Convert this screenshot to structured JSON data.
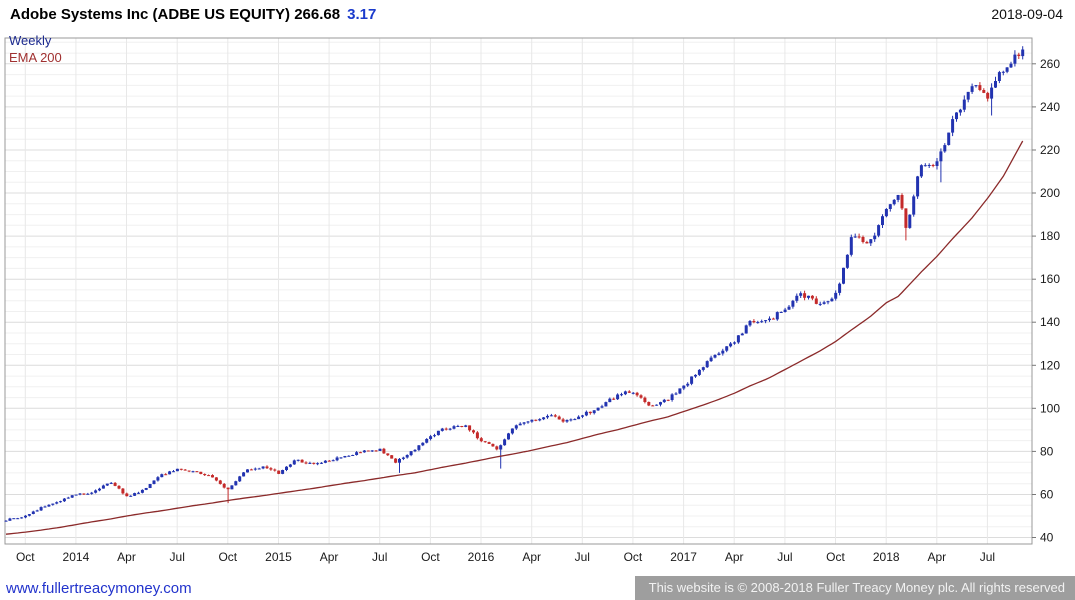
{
  "header": {
    "title": "Adobe Systems Inc (ADBE US EQUITY) 266.68",
    "change": "3.17",
    "date": "2018-09-04"
  },
  "legend": {
    "interval_label": "Weekly",
    "ema_label": "EMA 200"
  },
  "footer": {
    "site_link": "www.fullertreacymoney.com",
    "copyright": "This website is © 2008-2018 Fuller Treacy Money plc. All rights reserved"
  },
  "chart_data": {
    "type": "candlestick",
    "title": "Adobe Systems Inc (ADBE US EQUITY)",
    "interval": "Weekly",
    "overlay": "EMA 200",
    "last_close": 266.68,
    "change": 3.17,
    "as_of_date": "2018-09-04",
    "value_range": [
      37,
      272
    ],
    "time_range": [
      2013.65,
      2018.72
    ],
    "series_start": 2013.655,
    "series_end": 2018.685,
    "y_ticks": [
      40,
      60,
      80,
      100,
      120,
      140,
      160,
      180,
      200,
      220,
      240,
      260
    ],
    "x_labels": [
      {
        "label": "Oct",
        "t": 2013.75
      },
      {
        "label": "2014",
        "t": 2014.0
      },
      {
        "label": "Apr",
        "t": 2014.25
      },
      {
        "label": "Jul",
        "t": 2014.5
      },
      {
        "label": "Oct",
        "t": 2014.75
      },
      {
        "label": "2015",
        "t": 2015.0
      },
      {
        "label": "Apr",
        "t": 2015.25
      },
      {
        "label": "Jul",
        "t": 2015.5
      },
      {
        "label": "Oct",
        "t": 2015.75
      },
      {
        "label": "2016",
        "t": 2016.0
      },
      {
        "label": "Apr",
        "t": 2016.25
      },
      {
        "label": "Jul",
        "t": 2016.5
      },
      {
        "label": "Oct",
        "t": 2016.75
      },
      {
        "label": "2017",
        "t": 2017.0
      },
      {
        "label": "Apr",
        "t": 2017.25
      },
      {
        "label": "Jul",
        "t": 2017.5
      },
      {
        "label": "Oct",
        "t": 2017.75
      },
      {
        "label": "2018",
        "t": 2018.0
      },
      {
        "label": "Apr",
        "t": 2018.25
      },
      {
        "label": "Jul",
        "t": 2018.5
      }
    ],
    "anchors_format": [
      "time_decimal_year",
      "close_est",
      "ema200_est"
    ],
    "anchors": [
      [
        2013.65,
        48,
        41.5
      ],
      [
        2013.75,
        50,
        42.5
      ],
      [
        2013.83,
        54,
        43.5
      ],
      [
        2013.92,
        57,
        44.7
      ],
      [
        2014.0,
        60,
        46
      ],
      [
        2014.08,
        61,
        47.3
      ],
      [
        2014.17,
        66,
        48.6
      ],
      [
        2014.25,
        59,
        50
      ],
      [
        2014.33,
        62,
        51.2
      ],
      [
        2014.42,
        69,
        52.4
      ],
      [
        2014.5,
        72,
        53.6
      ],
      [
        2014.58,
        71,
        54.8
      ],
      [
        2014.67,
        68,
        56
      ],
      [
        2014.75,
        62,
        57.2
      ],
      [
        2014.83,
        71,
        58.3
      ],
      [
        2014.92,
        73,
        59.4
      ],
      [
        2015.0,
        70,
        60.5
      ],
      [
        2015.08,
        76,
        61.6
      ],
      [
        2015.17,
        74,
        62.8
      ],
      [
        2015.25,
        76,
        64
      ],
      [
        2015.33,
        78,
        65.2
      ],
      [
        2015.42,
        80,
        66.4
      ],
      [
        2015.5,
        81,
        67.6
      ],
      [
        2015.58,
        75,
        68.8
      ],
      [
        2015.67,
        81,
        70
      ],
      [
        2015.75,
        87,
        71.5
      ],
      [
        2015.83,
        91,
        73
      ],
      [
        2015.92,
        92,
        74.5
      ],
      [
        2016.0,
        85,
        76
      ],
      [
        2016.08,
        81,
        77.5
      ],
      [
        2016.17,
        92,
        79
      ],
      [
        2016.25,
        94,
        80.5
      ],
      [
        2016.33,
        97,
        82.2
      ],
      [
        2016.42,
        94,
        84
      ],
      [
        2016.5,
        97,
        86
      ],
      [
        2016.58,
        100,
        88
      ],
      [
        2016.67,
        106,
        90
      ],
      [
        2016.75,
        108,
        92
      ],
      [
        2016.83,
        101,
        94
      ],
      [
        2016.92,
        104,
        96
      ],
      [
        2017.0,
        110,
        98.5
      ],
      [
        2017.08,
        118,
        101
      ],
      [
        2017.17,
        126,
        104
      ],
      [
        2017.25,
        131,
        107
      ],
      [
        2017.33,
        140,
        110.5
      ],
      [
        2017.42,
        141,
        114
      ],
      [
        2017.5,
        146,
        118
      ],
      [
        2017.58,
        153,
        122
      ],
      [
        2017.67,
        149,
        126.5
      ],
      [
        2017.75,
        152,
        131
      ],
      [
        2017.83,
        180,
        136.5
      ],
      [
        2017.92,
        177,
        142.5
      ],
      [
        2018.0,
        192,
        149
      ],
      [
        2018.06,
        200,
        152
      ],
      [
        2018.1,
        184,
        156
      ],
      [
        2018.17,
        214,
        163
      ],
      [
        2018.25,
        214,
        170.5
      ],
      [
        2018.33,
        234,
        179
      ],
      [
        2018.42,
        250,
        188
      ],
      [
        2018.5,
        244,
        197.5
      ],
      [
        2018.58,
        258,
        208
      ],
      [
        2018.685,
        266.68,
        226
      ]
    ],
    "wick_lows": [
      [
        2014.75,
        56
      ],
      [
        2015.6,
        70
      ],
      [
        2016.1,
        72
      ],
      [
        2018.1,
        178
      ],
      [
        2018.27,
        205
      ],
      [
        2018.52,
        236
      ]
    ],
    "colors": {
      "up": "#2233b0",
      "down": "#c42a2a",
      "ema": "#8b2a2a",
      "grid_major": "#dcdcdc",
      "grid_minor": "#f0f0f0",
      "grid_vertical": "#e8e8e8",
      "border": "#999999",
      "axis_text": "#1a1a1a"
    }
  }
}
